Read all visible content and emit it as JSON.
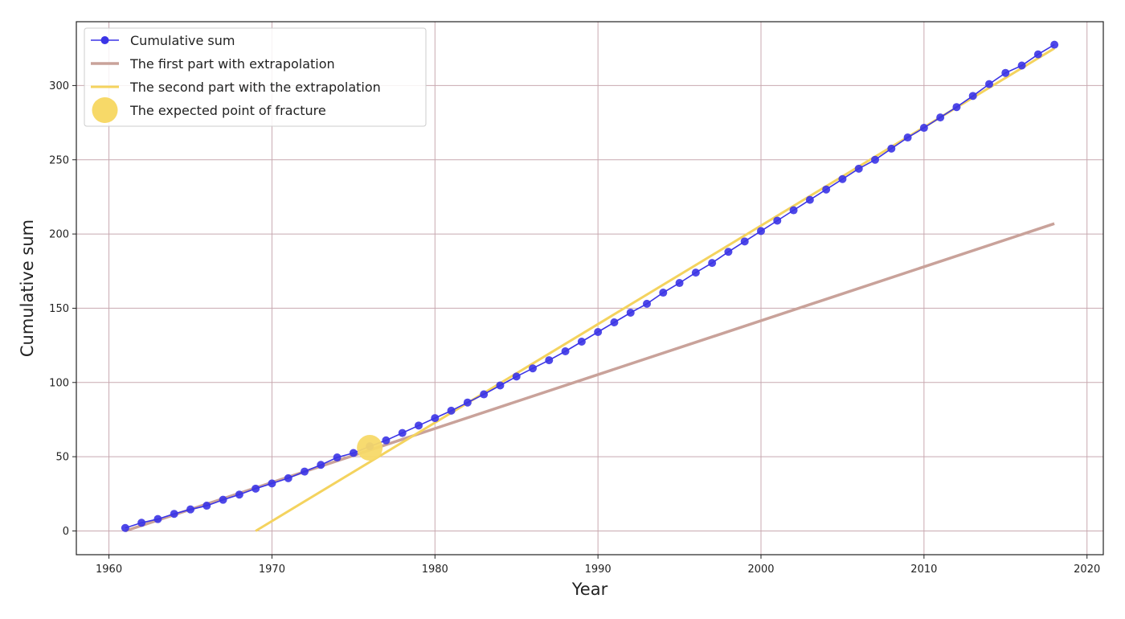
{
  "chart_data": {
    "type": "line",
    "title": "",
    "xlabel": "Year",
    "ylabel": "Cumulative sum",
    "xlim": [
      1958,
      2021
    ],
    "ylim": [
      -16,
      343
    ],
    "x_ticks": [
      1960,
      1970,
      1980,
      1990,
      2000,
      2010,
      2020
    ],
    "y_ticks": [
      0,
      50,
      100,
      150,
      200,
      250,
      300
    ],
    "grid": true,
    "legend_position": "top-left",
    "colors": {
      "cumulative": "#3b34e6",
      "first_part": "#c9a29a",
      "second_part": "#f4d35e",
      "fracture": "#f7d968",
      "grid": "#c8a9b0"
    },
    "series": [
      {
        "name": "Cumulative sum",
        "style": "line-marker",
        "x": [
          1961,
          1962,
          1963,
          1964,
          1965,
          1966,
          1967,
          1968,
          1969,
          1970,
          1971,
          1972,
          1973,
          1974,
          1975,
          1976,
          1977,
          1978,
          1979,
          1980,
          1981,
          1982,
          1983,
          1984,
          1985,
          1986,
          1987,
          1988,
          1989,
          1990,
          1991,
          1992,
          1993,
          1994,
          1995,
          1996,
          1997,
          1998,
          1999,
          2000,
          2001,
          2002,
          2003,
          2004,
          2005,
          2006,
          2007,
          2008,
          2009,
          2010,
          2011,
          2012,
          2013,
          2014,
          2015,
          2016,
          2017,
          2018
        ],
        "y": [
          2,
          5.5,
          8,
          11.5,
          14.5,
          17,
          21,
          24.5,
          28.5,
          32,
          35.5,
          40,
          44.5,
          49.5,
          52.5,
          57,
          61,
          66,
          71,
          76,
          81,
          86.5,
          92,
          98,
          104,
          109.5,
          115,
          121,
          127.5,
          134,
          140.5,
          147,
          153,
          160.5,
          167,
          174,
          180.5,
          188,
          195,
          202,
          209,
          216,
          223,
          230,
          237,
          244,
          250,
          257.5,
          265,
          271.5,
          278.5,
          285.5,
          293,
          301,
          308.5,
          313.5,
          321,
          327.5
        ]
      },
      {
        "name": "The first part with extrapolation",
        "style": "line",
        "x": [
          1961,
          2018
        ],
        "y": [
          0,
          207
        ]
      },
      {
        "name": "The second part with the extrapolation",
        "style": "line",
        "x": [
          1969,
          2018
        ],
        "y": [
          0,
          325
        ]
      },
      {
        "name": "The expected point of fracture",
        "style": "marker",
        "x": [
          1976
        ],
        "y": [
          56
        ]
      }
    ]
  }
}
